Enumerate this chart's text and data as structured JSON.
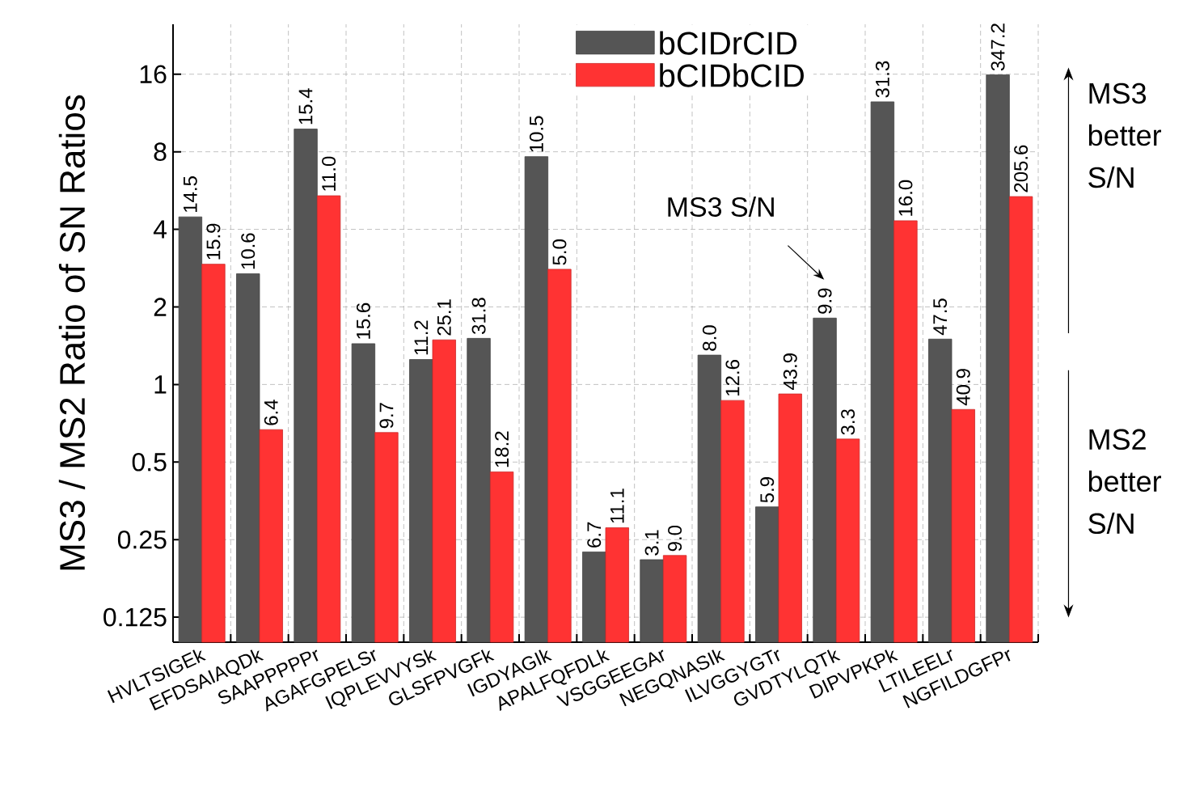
{
  "chart_data": {
    "type": "bar",
    "ylabel": "MS3 / MS2 Ratio of SN Ratios",
    "log": "y",
    "grid": true,
    "legend": "top",
    "categories": [
      "HVLTSIGEk",
      "EFDSAIAQDk",
      "SAAPPPPPr",
      "AGAFGPELSr",
      "IQPLEVVYSk",
      "GLSFPVGFk",
      "IGDYAGIk",
      "APALFQFDLk",
      "VSGGEEGAr",
      "NEGQNASIk",
      "ILVGGYGTr",
      "GVDTYLQTk",
      "DIPVPKPk",
      "LTILEELr",
      "NGFILDGFPr"
    ],
    "ylim": [
      0.1,
      25
    ],
    "yticks": [
      0.125,
      0.25,
      0.5,
      1,
      2,
      4,
      8,
      16
    ],
    "series": [
      {
        "name": "bCIDrCID",
        "color": "#555555",
        "values": [
          4.47,
          2.69,
          9.8,
          1.44,
          1.25,
          1.51,
          7.66,
          0.224,
          0.209,
          1.3,
          0.335,
          1.81,
          12.5,
          1.5,
          15.9
        ]
      },
      {
        "name": "bCIDbCID",
        "color": "#ff3333",
        "values": [
          2.93,
          0.668,
          5.4,
          0.651,
          1.49,
          0.458,
          2.8,
          0.278,
          0.217,
          0.867,
          0.919,
          0.614,
          4.32,
          0.8,
          5.36
        ]
      }
    ],
    "annotations": [
      "MS3 S/N",
      "MS3 better S/N",
      "MS2 better S/N",
      {
        "text": "14.5",
        "x": "HVLTSIGEk",
        "y": 4.47
      },
      {
        "text": "15.9",
        "x": "HVLTSIGEk",
        "y": 2.93
      },
      {
        "text": "10.6",
        "x": "EFDSAIAQDk",
        "y": 2.69
      },
      {
        "text": "6.4",
        "x": "EFDSAIAQDk",
        "y": 0.668
      },
      {
        "text": "15.4",
        "x": "SAAPPPPPr",
        "y": 9.8
      },
      {
        "text": "11.0",
        "x": "SAAPPPPPr",
        "y": 5.4
      },
      {
        "text": "15.6",
        "x": "AGAFGPELSr",
        "y": 1.44
      },
      {
        "text": "9.7",
        "x": "AGAFGPELSr",
        "y": 0.651
      },
      {
        "text": "11.2",
        "x": "IQPLEVVYSk",
        "y": 1.25
      },
      {
        "text": "25.1",
        "x": "IQPLEVVYSk",
        "y": 1.49
      },
      {
        "text": "31.8",
        "x": "GLSFPVGFk",
        "y": 1.51
      },
      {
        "text": "18.2",
        "x": "GLSFPVGFk",
        "y": 0.458
      },
      {
        "text": "10.5",
        "x": "IGDYAGIk",
        "y": 7.66
      },
      {
        "text": "5.0",
        "x": "IGDYAGIk",
        "y": 2.8
      },
      {
        "text": "6.7",
        "x": "APALFQFDLk",
        "y": 0.224
      },
      {
        "text": "11.1",
        "x": "APALFQFDLk",
        "y": 0.278
      },
      {
        "text": "3.1",
        "x": "VSGGEEGAr",
        "y": 0.209
      },
      {
        "text": "9.0",
        "x": "VSGGEEGAr",
        "y": 0.217
      },
      {
        "text": "8.0",
        "x": "NEGQNASIk",
        "y": 1.3
      },
      {
        "text": "12.6",
        "x": "NEGQNASIk",
        "y": 0.867
      },
      {
        "text": "5.9",
        "x": "ILVGGYGTr",
        "y": 0.335
      },
      {
        "text": "43.9",
        "x": "ILVGGYGTr",
        "y": 0.919
      },
      {
        "text": "9.9",
        "x": "GVDTYLQTk",
        "y": 1.81
      },
      {
        "text": "3.3",
        "x": "GVDTYLQTk",
        "y": 0.614
      },
      {
        "text": "31.3",
        "x": "DIPVPKPk",
        "y": 12.5
      },
      {
        "text": "16.0",
        "x": "DIPVPKPk",
        "y": 4.32
      },
      {
        "text": "47.5",
        "x": "LTILEELr",
        "y": 1.5
      },
      {
        "text": "40.9",
        "x": "LTILEELr",
        "y": 0.8
      },
      {
        "text": "347.2",
        "x": "NGFILDGFPr",
        "y": 15.9
      },
      {
        "text": "205.6",
        "x": "NGFILDGFPr",
        "y": 5.36
      }
    ]
  }
}
